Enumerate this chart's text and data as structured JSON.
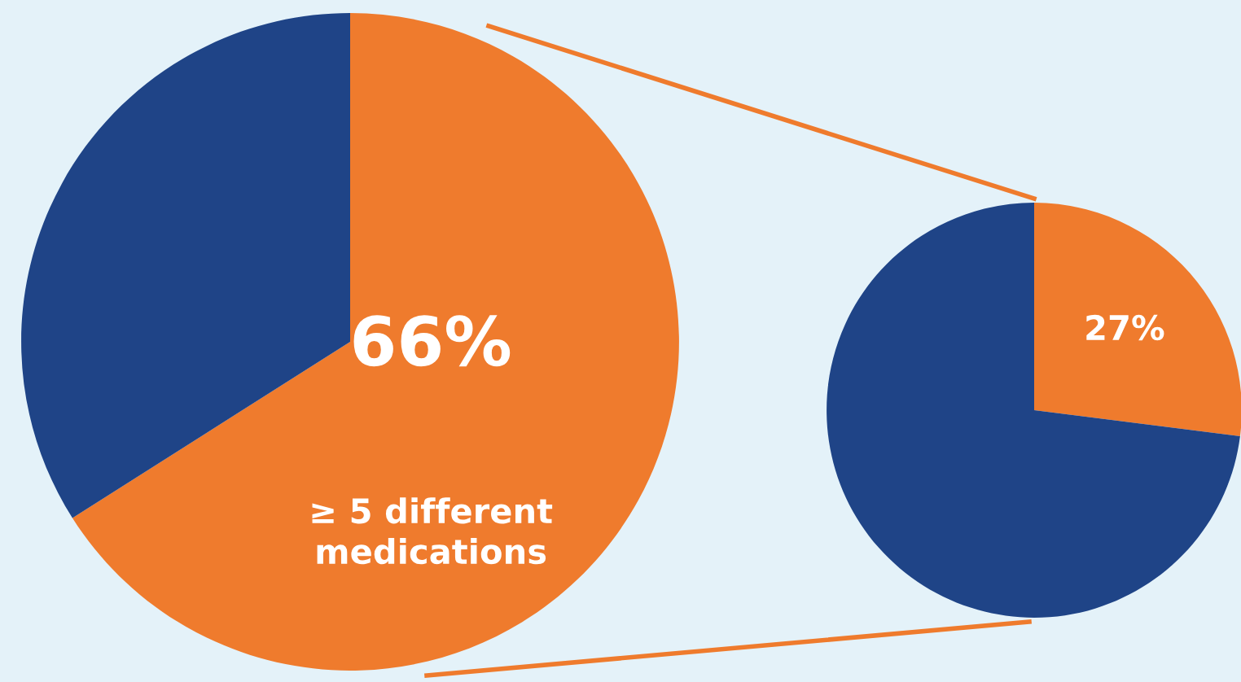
{
  "chart_data": [
    {
      "type": "pie",
      "categories": [
        "≥ 5 different medications",
        null
      ],
      "values": [
        66,
        34
      ],
      "colors": [
        "#ef7b2d",
        "#1f4487"
      ],
      "value_labels": [
        "66%",
        null
      ]
    },
    {
      "type": "pie",
      "categories": [
        null,
        null
      ],
      "values": [
        27,
        73
      ],
      "colors": [
        "#ef7b2d",
        "#1f4487"
      ],
      "value_labels": [
        "27%",
        null
      ]
    }
  ]
}
